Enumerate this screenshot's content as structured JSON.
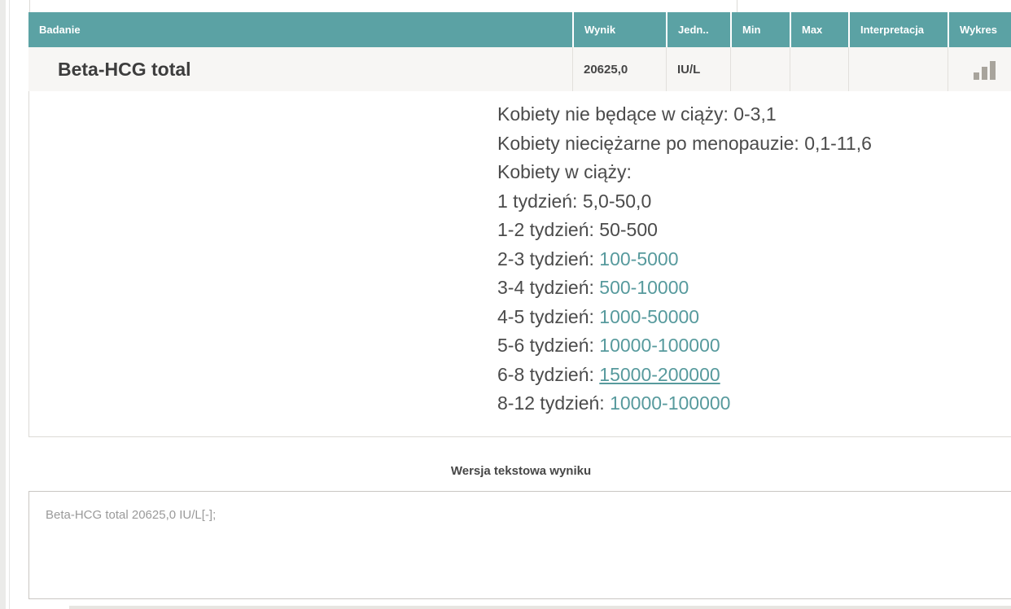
{
  "colors": {
    "header_teal": "#5ba2a4",
    "range_teal": "#579a9d"
  },
  "icons": {
    "chart": "bar-chart-icon"
  },
  "table": {
    "columns": [
      "Badanie",
      "Wynik",
      "Jedn..",
      "Min",
      "Max",
      "Interpretacja",
      "Wykres"
    ],
    "row": {
      "name": "Beta-HCG total",
      "result": "20625,0",
      "unit": "IU/L",
      "min": "",
      "max": "",
      "interpretation": ""
    }
  },
  "reference": {
    "lines": [
      {
        "label": "Kobiety nie będące w ciąży: ",
        "range": "0-3,1",
        "highlight": false,
        "underline": false
      },
      {
        "label": "Kobiety nieciężarne po menopauzie: ",
        "range": "0,1-11,6",
        "highlight": false,
        "underline": false
      },
      {
        "label": "Kobiety w ciąży:",
        "range": "",
        "highlight": false,
        "underline": false
      },
      {
        "label": "1 tydzień: ",
        "range": "5,0-50,0",
        "highlight": false,
        "underline": false
      },
      {
        "label": "1-2 tydzień: ",
        "range": "50-500",
        "highlight": false,
        "underline": false
      },
      {
        "label": "2-3 tydzień: ",
        "range": "100-5000",
        "highlight": true,
        "underline": false
      },
      {
        "label": "3-4 tydzień: ",
        "range": "500-10000",
        "highlight": true,
        "underline": false
      },
      {
        "label": "4-5 tydzień: ",
        "range": "1000-50000",
        "highlight": true,
        "underline": false
      },
      {
        "label": "5-6 tydzień: ",
        "range": "10000-100000",
        "highlight": true,
        "underline": false
      },
      {
        "label": "6-8 tydzień: ",
        "range": "15000-200000",
        "highlight": true,
        "underline": true
      },
      {
        "label": "8-12 tydzień: ",
        "range": "10000-100000",
        "highlight": true,
        "underline": false
      }
    ]
  },
  "text_version": {
    "heading": "Wersja tekstowa wyniku",
    "content": "Beta-HCG total 20625,0 IU/L[-];"
  }
}
